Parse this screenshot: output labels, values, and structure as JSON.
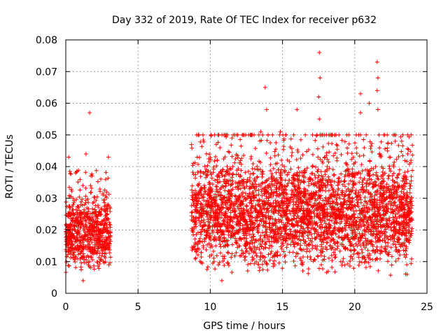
{
  "chart_data": {
    "type": "scatter",
    "title": "Day 332 of 2019, Rate Of TEC Index for receiver p632",
    "xlabel": "GPS time / hours",
    "ylabel": "ROTI / TECUs",
    "xlim": [
      0,
      25
    ],
    "ylim": [
      0,
      0.08
    ],
    "xticks": [
      0,
      5,
      10,
      15,
      20,
      25
    ],
    "yticks": [
      0,
      0.01,
      0.02,
      0.03,
      0.04,
      0.05,
      0.06,
      0.07,
      0.08
    ],
    "xtick_labels": [
      "0",
      "5",
      "10",
      "15",
      "20",
      "25"
    ],
    "ytick_labels": [
      "0",
      "0.01",
      "0.02",
      "0.03",
      "0.04",
      "0.05",
      "0.06",
      "0.07",
      "0.08"
    ],
    "grid": true,
    "marker": "+",
    "color": "#ff0000",
    "series": [
      {
        "name": "ROTI",
        "segments": [
          {
            "t_start": 0.0,
            "t_end": 3.1,
            "typical_min": 0.005,
            "typical_max": 0.032
          },
          {
            "t_start": 8.7,
            "t_end": 24.0,
            "typical_min": 0.004,
            "typical_max": 0.045
          }
        ],
        "notable_points": [
          {
            "x": 1.65,
            "y": 0.057
          },
          {
            "x": 0.2,
            "y": 0.043
          },
          {
            "x": 1.4,
            "y": 0.044
          },
          {
            "x": 2.95,
            "y": 0.043
          },
          {
            "x": 9.5,
            "y": 0.038
          },
          {
            "x": 11.5,
            "y": 0.049
          },
          {
            "x": 13.8,
            "y": 0.065
          },
          {
            "x": 13.9,
            "y": 0.058
          },
          {
            "x": 13.5,
            "y": 0.051
          },
          {
            "x": 14.85,
            "y": 0.051
          },
          {
            "x": 16.0,
            "y": 0.058
          },
          {
            "x": 17.55,
            "y": 0.076
          },
          {
            "x": 17.6,
            "y": 0.068
          },
          {
            "x": 17.5,
            "y": 0.062
          },
          {
            "x": 17.55,
            "y": 0.055
          },
          {
            "x": 17.6,
            "y": 0.05
          },
          {
            "x": 20.4,
            "y": 0.063
          },
          {
            "x": 20.4,
            "y": 0.057
          },
          {
            "x": 21.0,
            "y": 0.06
          },
          {
            "x": 21.55,
            "y": 0.073
          },
          {
            "x": 21.6,
            "y": 0.068
          },
          {
            "x": 21.55,
            "y": 0.064
          },
          {
            "x": 21.6,
            "y": 0.058
          },
          {
            "x": 22.8,
            "y": 0.048
          },
          {
            "x": 23.25,
            "y": 0.048
          },
          {
            "x": 1.2,
            "y": 0.004
          },
          {
            "x": 10.8,
            "y": 0.004
          }
        ]
      }
    ]
  }
}
